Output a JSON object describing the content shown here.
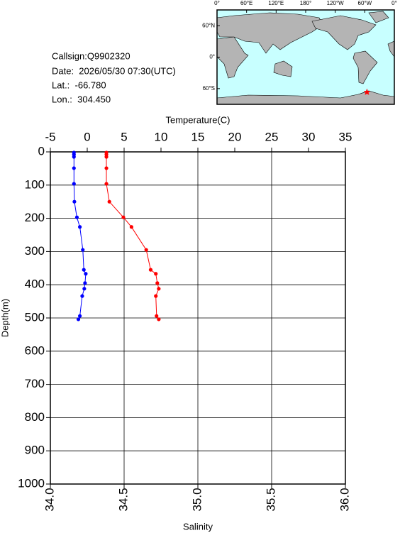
{
  "info": {
    "lines": [
      "Callsign:Q9902320",
      "Date:  2026/05/30 07:30(UTC)",
      "Lat.:  -66.780",
      "Lon.:  304.450"
    ]
  },
  "chart_data": [
    {
      "type": "map",
      "lonlim": [
        0,
        360
      ],
      "latlim": [
        90,
        -90
      ],
      "lonticks": [
        {
          "value": 0,
          "label": "0°"
        },
        {
          "value": 60,
          "label": "60°E"
        },
        {
          "value": 120,
          "label": "120°E"
        },
        {
          "value": 180,
          "label": "180°"
        },
        {
          "value": 240,
          "label": "120°W"
        },
        {
          "value": 300,
          "label": "60°W"
        },
        {
          "value": 360,
          "label": "0°"
        }
      ],
      "latticks": [
        {
          "value": 60,
          "label": "60°N"
        },
        {
          "value": 0,
          "label": "0°"
        },
        {
          "value": -60,
          "label": "60°S"
        }
      ],
      "marker_color": "#ff0000"
    },
    {
      "type": "profile",
      "ylabel": "Depth(m)",
      "ylim": [
        0,
        1000
      ],
      "yticks": [
        0,
        100,
        200,
        300,
        400,
        500,
        600,
        700,
        800,
        900,
        1000
      ],
      "y_inverted": true,
      "y": [
        2,
        8,
        15,
        49,
        96,
        150,
        197,
        226,
        295,
        355,
        367,
        395,
        412,
        434,
        494,
        504
      ],
      "xlabel_top": "Temperature(C)",
      "xlim_top": [
        -5,
        35
      ],
      "xticks_top": [
        -5,
        0,
        5,
        10,
        15,
        20,
        25,
        30,
        35
      ],
      "xlabel": "Salinity",
      "xlim": [
        34.0,
        36.0
      ],
      "xticks": [
        {
          "value": 34.0,
          "label": "34.0"
        },
        34.5,
        {
          "value": 35.0,
          "label": "35.0"
        },
        35.5,
        {
          "value": 36.0,
          "label": "36.0"
        }
      ],
      "grid": true,
      "series": [
        {
          "axis": "x_top",
          "color": "#ff0000",
          "values": [
            2.6,
            2.6,
            2.6,
            2.6,
            2.6,
            3.0,
            4.9,
            6.0,
            8.0,
            8.6,
            9.3,
            9.5,
            9.7,
            9.3,
            9.4,
            9.7
          ]
        },
        {
          "axis": "x",
          "color": "#0000ff",
          "values": [
            34.16,
            34.16,
            34.16,
            34.16,
            34.16,
            34.163,
            34.18,
            34.2,
            34.22,
            34.227,
            34.24,
            34.235,
            34.23,
            34.216,
            34.2,
            34.19
          ]
        }
      ]
    }
  ]
}
